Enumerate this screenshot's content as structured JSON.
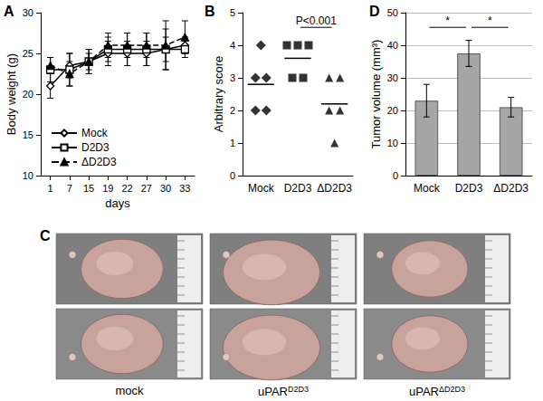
{
  "chart_data": [
    {
      "panel_label": "A",
      "type": "line",
      "x_label": "days",
      "y_label": "Body weight (g)",
      "categories": [
        "1",
        "7",
        "15",
        "19",
        "22",
        "27",
        "30",
        "33"
      ],
      "ylim": [
        10,
        30
      ],
      "yticks": [
        10,
        15,
        20,
        25,
        30
      ],
      "grid": false,
      "legend": "lower left",
      "series": [
        {
          "name": "Mock",
          "color": "#000000",
          "marker": "open-diamond",
          "line_style": "solid",
          "values": [
            21,
            23.5,
            24,
            25,
            25,
            25,
            25.5,
            26
          ],
          "errors": [
            1.5,
            1.5,
            1.5,
            1.5,
            1.5,
            1.5,
            1.5,
            1
          ]
        },
        {
          "name": "D2D3",
          "color": "#000000",
          "marker": "open-square",
          "line_style": "solid",
          "values": [
            23,
            23,
            24,
            25.5,
            25.5,
            25.5,
            25.5,
            25.5
          ],
          "errors": [
            1.5,
            2,
            1.5,
            1.5,
            2,
            2,
            2.5,
            1
          ]
        },
        {
          "name": "ΔD2D3",
          "color": "#000000",
          "marker": "triangle",
          "line_style": "dashed",
          "values": [
            23.5,
            22.5,
            24,
            26,
            26,
            26,
            26,
            27
          ],
          "errors": [
            1,
            1.5,
            1,
            1.5,
            1.5,
            1.5,
            3,
            2
          ]
        }
      ]
    },
    {
      "panel_label": "B",
      "type": "scatter",
      "y_label": "Arbitrary score",
      "categories": [
        "Mock",
        "D2D3",
        "ΔD2D3"
      ],
      "ylim": [
        0,
        5
      ],
      "yticks": [
        0,
        1,
        2,
        3,
        4,
        5
      ],
      "grid": false,
      "color": "#000000",
      "groups": [
        {
          "category": "Mock",
          "marker": "diamond",
          "values": [
            4,
            3,
            3,
            2,
            2
          ],
          "mean": 2.8
        },
        {
          "category": "D2D3",
          "marker": "square",
          "values": [
            4,
            4,
            4,
            3,
            3
          ],
          "mean": 3.6
        },
        {
          "category": "ΔD2D3",
          "marker": "triangle",
          "values": [
            3,
            3,
            2,
            2,
            1
          ],
          "mean": 2.2
        }
      ],
      "annotations": [
        {
          "text": "P<0.001",
          "between": [
            "D2D3",
            "ΔD2D3"
          ]
        }
      ]
    },
    {
      "panel_label": "D",
      "type": "bar",
      "y_label": "Tumor volume (mm³)",
      "categories": [
        "Mock",
        "D2D3",
        "ΔD2D3"
      ],
      "values": [
        23,
        37.5,
        21
      ],
      "errors": [
        5,
        4,
        3
      ],
      "color": "#a6a6a6",
      "ylim": [
        0,
        50
      ],
      "yticks": [
        0,
        10,
        20,
        30,
        40,
        50
      ],
      "grid": true,
      "annotations": [
        {
          "text": "*",
          "between": [
            "Mock",
            "D2D3"
          ]
        },
        {
          "text": "*",
          "between": [
            "D2D3",
            "ΔD2D3"
          ]
        }
      ]
    }
  ],
  "photo_panel": {
    "panel_label": "C",
    "photo_labels": [
      {
        "text": "mock"
      },
      {
        "text": "uPAR",
        "superscript": "D2D3"
      },
      {
        "text": "uPAR",
        "superscript": "ΔD2D3"
      }
    ]
  }
}
